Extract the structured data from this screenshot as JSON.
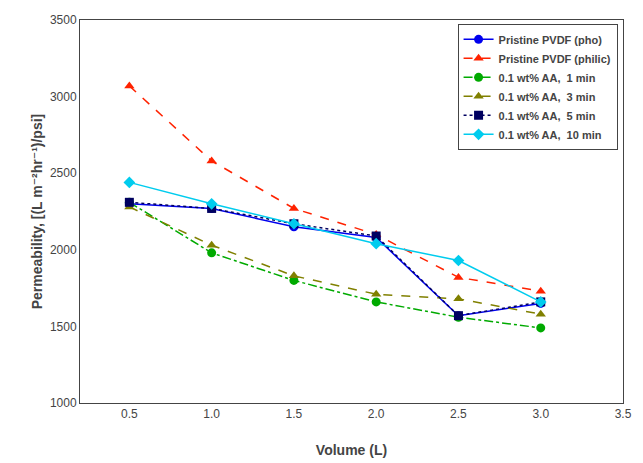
{
  "chart_data": {
    "type": "line",
    "x": [
      0.5,
      1.0,
      1.5,
      2.0,
      2.5,
      3.0
    ],
    "series": [
      {
        "name": "Pristine PVDF (pho)",
        "values": [
          2300,
          2270,
          2150,
          2080,
          1570,
          1650
        ],
        "color": "#0000EE",
        "marker": "circle",
        "line_style": "solid"
      },
      {
        "name": "Pristine PVDF (philic)",
        "values": [
          3070,
          2580,
          2270,
          2100,
          1820,
          1730
        ],
        "color": "#FF2200",
        "marker": "triangle-up",
        "line_style": "dashed"
      },
      {
        "name": "0.1 wt% AA,  1 min",
        "values": [
          2310,
          1980,
          1800,
          1660,
          1560,
          1490
        ],
        "color": "#00AA00",
        "marker": "circle",
        "line_style": "dashdot"
      },
      {
        "name": "0.1 wt% AA,  3 min",
        "values": [
          2280,
          2030,
          1830,
          1710,
          1680,
          1580
        ],
        "color": "#808000",
        "marker": "triangle-up",
        "line_style": "dashed"
      },
      {
        "name": "0.1 wt% AA,  5 min",
        "values": [
          2310,
          2270,
          2170,
          2090,
          1570,
          1660
        ],
        "color": "#000060",
        "marker": "square",
        "line_style": "dotted"
      },
      {
        "name": "0.1 wt% AA,  10 min",
        "values": [
          2440,
          2300,
          2170,
          2040,
          1930,
          1660
        ],
        "color": "#00CCEE",
        "marker": "diamond",
        "line_style": "solid"
      }
    ],
    "x_label": "Volume (L)",
    "y_label": "Permeability, [(L m⁻²hr⁻¹)/psi]",
    "xlim": [
      0.2,
      3.5
    ],
    "ylim": [
      1000,
      3500
    ],
    "xticks": [
      0.5,
      {
        "value": 1,
        "label": "1.0"
      },
      1.5,
      {
        "value": 2,
        "label": "2.0"
      },
      2.5,
      {
        "value": 3,
        "label": "3.0"
      },
      3.5
    ],
    "yticks": [
      1000,
      1500,
      2000,
      2500,
      3000,
      3500
    ],
    "grid": false,
    "legend": "upper right"
  }
}
